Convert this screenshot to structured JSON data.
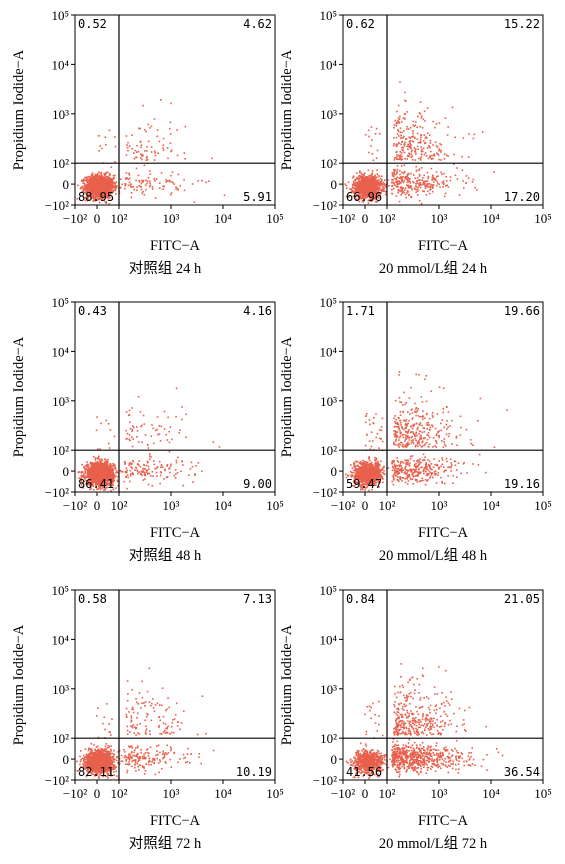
{
  "figure": {
    "axis_labels": {
      "x": "FITC−A",
      "y": "Propidium Iodide−A"
    },
    "dot_color": "#e8604c"
  },
  "chart_data": [
    {
      "type": "scatter",
      "caption": "对照组 24 h",
      "xlabel": "FITC−A",
      "ylabel": "Propidium Iodide−A",
      "x_ticks": [
        "−10²",
        "0",
        "10²",
        "10³",
        "10⁴",
        "10⁵"
      ],
      "y_ticks": [
        "−10²",
        "0",
        "10²",
        "10³",
        "10⁴",
        "10⁵"
      ],
      "axis_range": [
        -100,
        100000
      ],
      "scale": "biexponential",
      "quadrant_gate": {
        "x": 100,
        "y": 100
      },
      "quadrants": {
        "upper_left": "0.52",
        "upper_right": "4.62",
        "lower_left": "88.95",
        "lower_right": "5.91"
      }
    },
    {
      "type": "scatter",
      "caption": "20 mmol/L组 24 h",
      "xlabel": "FITC−A",
      "ylabel": "Propidium Iodide−A",
      "x_ticks": [
        "−10²",
        "0",
        "10²",
        "10³",
        "10⁴",
        "10⁵"
      ],
      "y_ticks": [
        "−10²",
        "0",
        "10²",
        "10³",
        "10⁴",
        "10⁵"
      ],
      "axis_range": [
        -100,
        100000
      ],
      "scale": "biexponential",
      "quadrant_gate": {
        "x": 100,
        "y": 100
      },
      "quadrants": {
        "upper_left": "0.62",
        "upper_right": "15.22",
        "lower_left": "66.96",
        "lower_right": "17.20"
      }
    },
    {
      "type": "scatter",
      "caption": "对照组 48 h",
      "xlabel": "FITC−A",
      "ylabel": "Propidium Iodide−A",
      "x_ticks": [
        "−10²",
        "0",
        "10²",
        "10³",
        "10⁴",
        "10⁵"
      ],
      "y_ticks": [
        "−10²",
        "0",
        "10²",
        "10³",
        "10⁴",
        "10⁵"
      ],
      "axis_range": [
        -100,
        100000
      ],
      "scale": "biexponential",
      "quadrant_gate": {
        "x": 100,
        "y": 100
      },
      "quadrants": {
        "upper_left": "0.43",
        "upper_right": "4.16",
        "lower_left": "86.41",
        "lower_right": "9.00"
      }
    },
    {
      "type": "scatter",
      "caption": "20 mmol/L组 48 h",
      "xlabel": "FITC−A",
      "ylabel": "Propidium Iodide−A",
      "x_ticks": [
        "−10²",
        "0",
        "10²",
        "10³",
        "10⁴",
        "10⁵"
      ],
      "y_ticks": [
        "−10²",
        "0",
        "10²",
        "10³",
        "10⁴",
        "10⁵"
      ],
      "axis_range": [
        -100,
        100000
      ],
      "scale": "biexponential",
      "quadrant_gate": {
        "x": 100,
        "y": 100
      },
      "quadrants": {
        "upper_left": "1.71",
        "upper_right": "19.66",
        "lower_left": "59.47",
        "lower_right": "19.16"
      }
    },
    {
      "type": "scatter",
      "caption": "对照组 72 h",
      "xlabel": "FITC−A",
      "ylabel": "Propidium Iodide−A",
      "x_ticks": [
        "−10²",
        "0",
        "10²",
        "10³",
        "10⁴",
        "10⁵"
      ],
      "y_ticks": [
        "−10²",
        "0",
        "10²",
        "10³",
        "10⁴",
        "10⁵"
      ],
      "axis_range": [
        -100,
        100000
      ],
      "scale": "biexponential",
      "quadrant_gate": {
        "x": 100,
        "y": 100
      },
      "quadrants": {
        "upper_left": "0.58",
        "upper_right": "7.13",
        "lower_left": "82.11",
        "lower_right": "10.19"
      }
    },
    {
      "type": "scatter",
      "caption": "20 mmol/L组 72 h",
      "xlabel": "FITC−A",
      "ylabel": "Propidium Iodide−A",
      "x_ticks": [
        "−10²",
        "0",
        "10²",
        "10³",
        "10⁴",
        "10⁵"
      ],
      "y_ticks": [
        "−10²",
        "0",
        "10²",
        "10³",
        "10⁴",
        "10⁵"
      ],
      "axis_range": [
        -100,
        100000
      ],
      "scale": "biexponential",
      "quadrant_gate": {
        "x": 100,
        "y": 100
      },
      "quadrants": {
        "upper_left": "0.84",
        "upper_right": "21.05",
        "lower_left": "41.56",
        "lower_right": "36.54"
      }
    }
  ]
}
